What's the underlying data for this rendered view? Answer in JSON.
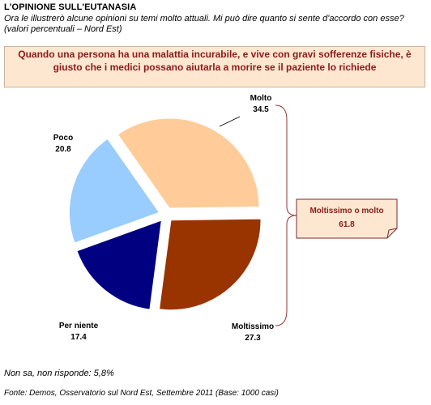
{
  "header": {
    "title": "L'OPINIONE SULL'EUTANASIA",
    "subtitle": "Ora le illustrerò alcune opinioni su temi molto attuali. Mi può dire quanto si sente d'accordo con esse? (valori percentuali – Nord Est)",
    "question": "Quando una persona ha una malattia incurabile, e vive con gravi sofferenze fisiche, è giusto che i medici possano aiutarla a morire se il paziente lo richiede"
  },
  "chart_data": {
    "type": "pie",
    "title": "",
    "slices": [
      {
        "label": "Molto",
        "value": 34.5,
        "display": "34.5",
        "color": "#ffcc99"
      },
      {
        "label": "Moltissimo",
        "value": 27.3,
        "display": "27.3",
        "color": "#993300"
      },
      {
        "label": "Per niente",
        "value": 17.4,
        "display": "17.4",
        "color": "#000080"
      },
      {
        "label": "Poco",
        "value": 20.8,
        "display": "20.8",
        "color": "#99ccff"
      }
    ],
    "summary": {
      "label": "Moltissimo o molto",
      "value": "61.8"
    },
    "exploded": true
  },
  "footer": {
    "note": "Non sa, non risponde: 5,8%",
    "source": "Fonte: Demos, Osservatorio sul Nord Est, Settembre  2011 (Base: 1000 casi)"
  }
}
